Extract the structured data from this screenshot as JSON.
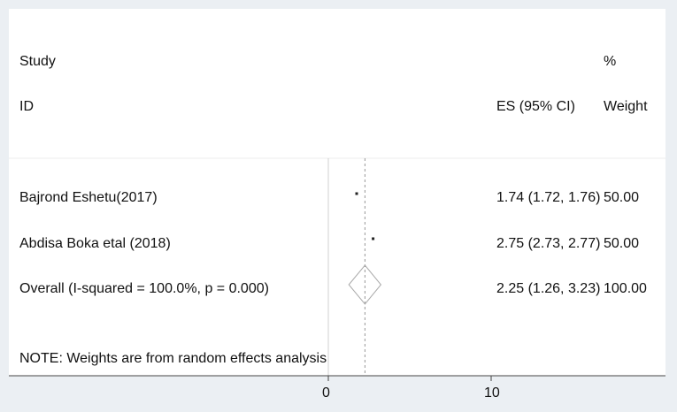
{
  "colors": {
    "background": "#ebeff3",
    "panel": "#ffffff",
    "text": "#111111",
    "axis": "#444444",
    "null_line": "#d0d0d0",
    "overall_line": "#999999"
  },
  "header": {
    "study_label": "Study",
    "id_label": "ID",
    "es_label": "ES (95% CI)",
    "pct_label": "%",
    "weight_label": "Weight"
  },
  "note": "NOTE: Weights are from random effects analysis",
  "chart_data": {
    "type": "forest",
    "studies": [
      {
        "id": "Bajrond Eshetu(2017)",
        "es": 1.74,
        "lo": 1.72,
        "hi": 1.76,
        "es_text": "1.74 (1.72, 1.76)",
        "weight_text": "50.00"
      },
      {
        "id": "Abdisa Boka etal (2018)",
        "es": 2.75,
        "lo": 2.73,
        "hi": 2.77,
        "es_text": "2.75 (2.73, 2.77)",
        "weight_text": "50.00"
      }
    ],
    "overall": {
      "label": "Overall  (I-squared = 100.0%, p = 0.000)",
      "es": 2.25,
      "lo": 1.26,
      "hi": 3.23,
      "es_text": "2.25 (1.26, 3.23)",
      "weight_text": "100.00"
    },
    "x_ticks": [
      0,
      10
    ],
    "null_value": 0
  }
}
